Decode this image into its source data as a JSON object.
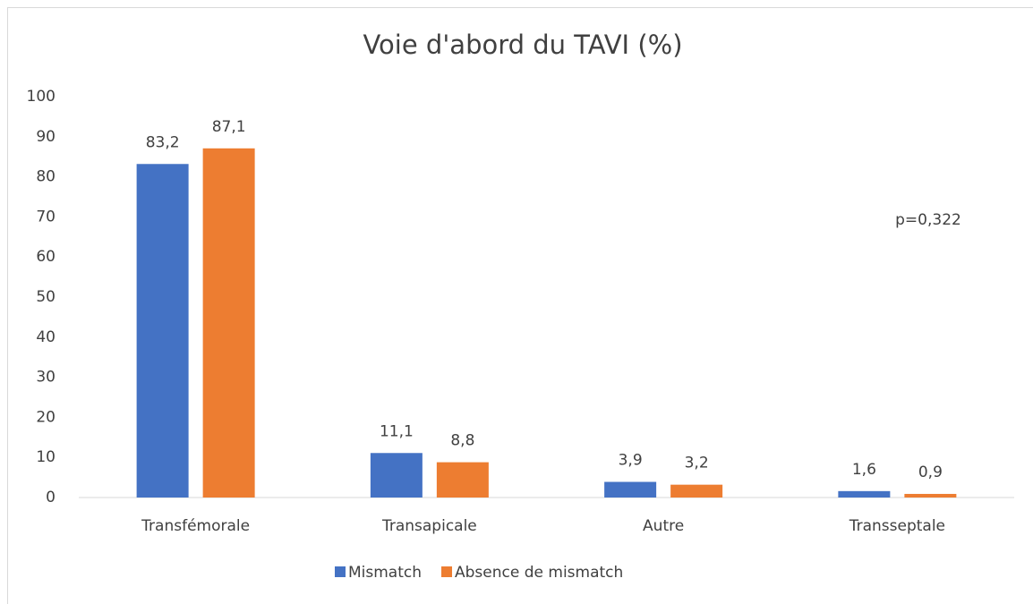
{
  "chart_data": {
    "type": "bar",
    "title": "Voie d'abord du TAVI (%)",
    "categories": [
      "Transfémorale",
      "Transapicale",
      "Autre",
      "Transseptale"
    ],
    "series": [
      {
        "name": "Mismatch",
        "color": "#4472c4",
        "values": [
          83.2,
          11.1,
          3.9,
          1.6
        ],
        "value_labels": [
          "83,2",
          "11,1",
          "3,9",
          "1,6"
        ]
      },
      {
        "name": "Absence de mismatch",
        "color": "#ed7d31",
        "values": [
          87.1,
          8.8,
          3.2,
          0.9
        ],
        "value_labels": [
          "87,1",
          "8,8",
          "3,2",
          "0,9"
        ]
      }
    ],
    "ylim": [
      0,
      100
    ],
    "yticks": [
      0,
      10,
      20,
      30,
      40,
      50,
      60,
      70,
      80,
      90,
      100
    ],
    "grid": false,
    "annotation": "p=0,322",
    "legend": "bottom"
  }
}
